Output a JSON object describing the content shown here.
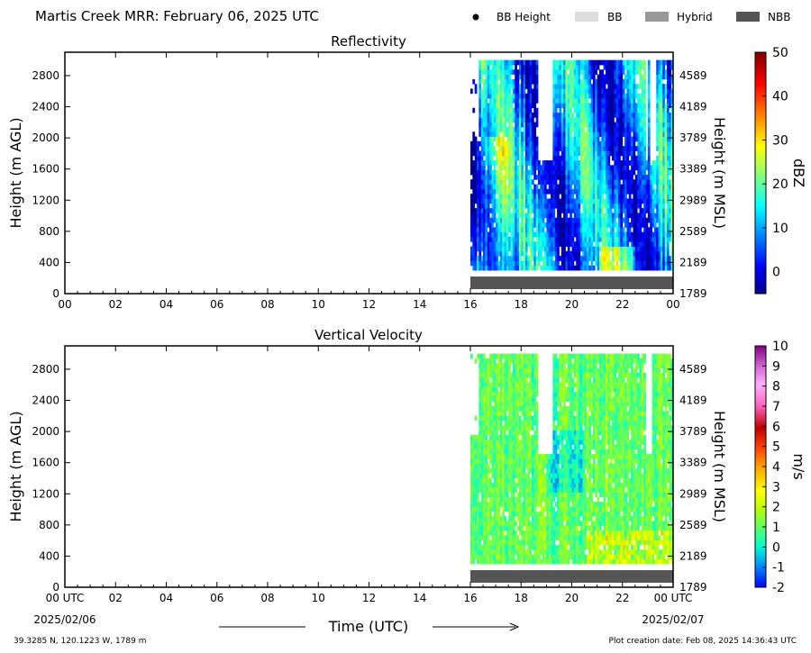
{
  "header": {
    "title": "Martis Creek MRR:  February 06, 2025 UTC"
  },
  "legend": [
    {
      "label": "BB Height",
      "kind": "dot",
      "color": "#000000"
    },
    {
      "label": "BB",
      "kind": "swatch",
      "color": "#dddddd"
    },
    {
      "label": "Hybrid",
      "kind": "swatch",
      "color": "#999999"
    },
    {
      "label": "NBB",
      "kind": "swatch",
      "color": "#555555"
    }
  ],
  "footer": {
    "location": "39.3285 N, 120.1223 W, 1789 m",
    "creation": "Plot creation date: Feb 08, 2025 14:36:43 UTC",
    "start_date": "2025/02/06",
    "end_date": "2025/02/07"
  },
  "chart_data": [
    {
      "type": "heatmap",
      "title": "Reflectivity",
      "xlabel": "",
      "ylabel": "Height (m AGL)",
      "y2label": "Height (m MSL)",
      "colorbar_label": "dBZ",
      "xlim": [
        0,
        24
      ],
      "ylim": [
        0,
        3100
      ],
      "y2lim": [
        1789,
        4889
      ],
      "x_ticks": [
        "00",
        "02",
        "04",
        "06",
        "08",
        "10",
        "12",
        "14",
        "16",
        "18",
        "20",
        "22",
        "00"
      ],
      "y_ticks": [
        0,
        400,
        800,
        1200,
        1600,
        2000,
        2400,
        2800
      ],
      "y2_ticks": [
        1789,
        2189,
        2589,
        2989,
        3389,
        3789,
        4189,
        4589
      ],
      "colorbar_range": [
        -5,
        50
      ],
      "colorbar_ticks": [
        0,
        10,
        20,
        30,
        40,
        50
      ],
      "colormap": "jet",
      "data_start_hour": 16,
      "data_end_hour": 24,
      "data_height_range": [
        300,
        3000
      ],
      "nbb_bar": {
        "start_hour": 16,
        "end_hour": 24
      }
    },
    {
      "type": "heatmap",
      "title": "Vertical Velocity",
      "xlabel": "Time (UTC)",
      "ylabel": "Height (m AGL)",
      "y2label": "Height (m MSL)",
      "colorbar_label": "m/s",
      "xlim": [
        0,
        24
      ],
      "ylim": [
        0,
        3100
      ],
      "y2lim": [
        1789,
        4889
      ],
      "x_ticks": [
        "00 UTC",
        "02",
        "04",
        "06",
        "08",
        "10",
        "12",
        "14",
        "16",
        "18",
        "20",
        "22",
        "00 UTC"
      ],
      "y_ticks": [
        0,
        400,
        800,
        1200,
        1600,
        2000,
        2400,
        2800
      ],
      "y2_ticks": [
        1789,
        2189,
        2589,
        2989,
        3389,
        3789,
        4189,
        4589
      ],
      "colorbar_range": [
        -2,
        10
      ],
      "colorbar_ticks": [
        -2,
        -1,
        0,
        1,
        2,
        3,
        4,
        5,
        6,
        7,
        8,
        9,
        10
      ],
      "colormap": "velocity",
      "data_start_hour": 16,
      "data_end_hour": 24,
      "data_height_range": [
        300,
        3000
      ],
      "nbb_bar": {
        "start_hour": 16,
        "end_hour": 24
      }
    }
  ]
}
